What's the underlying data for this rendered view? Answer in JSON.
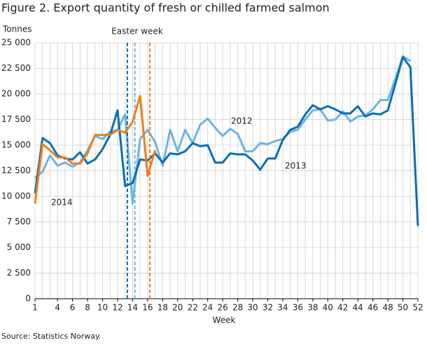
{
  "chart_data": {
    "type": "line",
    "title": "Figure 2. Export quantity of fresh or chilled farmed salmon",
    "y_label": "Tonnes",
    "x_label": "Week",
    "source": "Source: Statistics Norway.",
    "annotation": "Easter week",
    "x": [
      1,
      2,
      3,
      4,
      5,
      6,
      7,
      8,
      9,
      10,
      11,
      12,
      13,
      14,
      15,
      16,
      17,
      18,
      19,
      20,
      21,
      22,
      23,
      24,
      25,
      26,
      27,
      28,
      29,
      30,
      31,
      32,
      33,
      34,
      35,
      36,
      37,
      38,
      39,
      40,
      41,
      42,
      43,
      44,
      45,
      46,
      47,
      48,
      49,
      50,
      51,
      52
    ],
    "series": [
      {
        "name": "2012",
        "color": "#6cb4e4",
        "easter_week": 14.3,
        "values": [
          11800,
          12400,
          14000,
          13000,
          13300,
          12900,
          13300,
          14500,
          15900,
          15600,
          16300,
          16500,
          18000,
          9300,
          15600,
          16500,
          15300,
          13000,
          16500,
          14400,
          16500,
          15200,
          17000,
          17600,
          16700,
          15900,
          16600,
          16100,
          14400,
          14400,
          15200,
          15100,
          15400,
          15600,
          16300,
          16500,
          17500,
          18400,
          18500,
          17400,
          17500,
          18300,
          17300,
          17800,
          17900,
          18500,
          19400,
          19400,
          21500,
          23700,
          23200,
          null
        ]
      },
      {
        "name": "2013",
        "color": "#0a6eb4",
        "easter_week": 13.3,
        "values": [
          10300,
          15700,
          15200,
          14000,
          13700,
          13600,
          14300,
          13200,
          13600,
          14600,
          16000,
          18400,
          11000,
          11300,
          13600,
          13500,
          14200,
          13300,
          14200,
          14100,
          14400,
          15200,
          14900,
          15000,
          13300,
          13300,
          14200,
          14100,
          14100,
          13500,
          12600,
          13700,
          13700,
          15500,
          16500,
          16800,
          18000,
          18900,
          18500,
          18800,
          18500,
          18100,
          18100,
          18800,
          17800,
          18100,
          18000,
          18400,
          21000,
          23600,
          22600,
          7100
        ]
      },
      {
        "name": "2014",
        "color": "#f07d1e",
        "easter_week": 16.3,
        "values": [
          9300,
          15100,
          14500,
          13800,
          13800,
          13200,
          13200,
          14200,
          16000,
          16000,
          16000,
          16500,
          16200,
          17300,
          19800,
          12000,
          14500,
          null,
          null,
          null,
          null,
          null,
          null,
          null,
          null,
          null,
          null,
          null,
          null,
          null,
          null,
          null,
          null,
          null,
          null,
          null,
          null,
          null,
          null,
          null,
          null,
          null,
          null,
          null,
          null,
          null,
          null,
          null,
          null,
          null,
          null,
          null
        ]
      }
    ],
    "xlim": [
      1,
      52
    ],
    "xticks": [
      1,
      4,
      6,
      8,
      10,
      12,
      14,
      16,
      18,
      20,
      22,
      24,
      26,
      28,
      30,
      32,
      34,
      36,
      38,
      40,
      42,
      44,
      46,
      48,
      50,
      52
    ],
    "ylim": [
      0,
      25000
    ],
    "yticks": [
      0,
      {
        "value": 2500,
        "label": "2 500"
      },
      {
        "value": 5000,
        "label": "5 000"
      },
      {
        "value": 7500,
        "label": "7 500"
      },
      {
        "value": 10000,
        "label": "10 000"
      },
      {
        "value": 12500,
        "label": "12 500"
      },
      {
        "value": 15000,
        "label": "15 000"
      },
      {
        "value": 17500,
        "label": "17 500"
      },
      {
        "value": 20000,
        "label": "20 000"
      },
      {
        "value": 22500,
        "label": "22 500"
      },
      {
        "value": 25000,
        "label": "25 000"
      }
    ],
    "grid": true
  }
}
